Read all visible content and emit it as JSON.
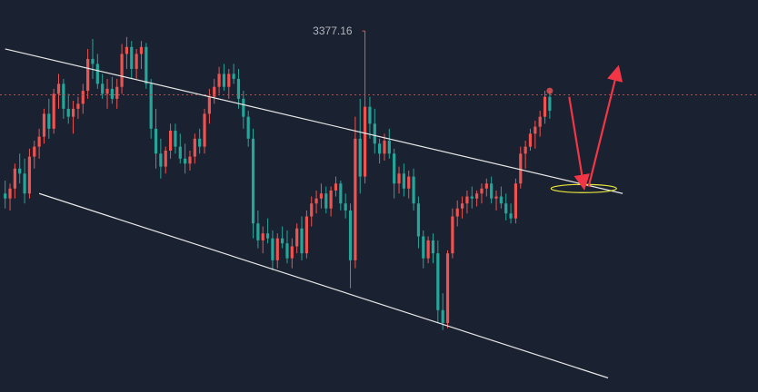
{
  "colors": {
    "background": "#1a2130",
    "up_candle": "#ef5350",
    "down_candle": "#26a69a",
    "channel_line": "#e6e6e6",
    "dotted_line": "#b45050",
    "arrow": "#f23645",
    "ellipse": "#e8e53c"
  },
  "chart_data": {
    "type": "candlestick",
    "title": "",
    "high_annotation": "3377.16",
    "price_range": [
      3025,
      3400
    ],
    "dotted_price_level": 3314,
    "series": [
      {
        "name": "",
        "ohlc": [
          [
            3215,
            3228,
            3200,
            3210
          ],
          [
            3210,
            3225,
            3198,
            3220
          ],
          [
            3220,
            3245,
            3210,
            3240
          ],
          [
            3240,
            3255,
            3225,
            3235
          ],
          [
            3235,
            3250,
            3205,
            3215
          ],
          [
            3215,
            3260,
            3210,
            3252
          ],
          [
            3252,
            3268,
            3240,
            3262
          ],
          [
            3262,
            3280,
            3250,
            3272
          ],
          [
            3272,
            3300,
            3265,
            3295
          ],
          [
            3295,
            3310,
            3270,
            3280
          ],
          [
            3280,
            3320,
            3275,
            3315
          ],
          [
            3315,
            3335,
            3300,
            3325
          ],
          [
            3325,
            3330,
            3290,
            3300
          ],
          [
            3300,
            3315,
            3285,
            3292
          ],
          [
            3292,
            3308,
            3275,
            3300
          ],
          [
            3300,
            3312,
            3290,
            3305
          ],
          [
            3305,
            3325,
            3295,
            3318
          ],
          [
            3318,
            3360,
            3310,
            3350
          ],
          [
            3350,
            3370,
            3330,
            3345
          ],
          [
            3345,
            3355,
            3320,
            3325
          ],
          [
            3325,
            3335,
            3310,
            3315
          ],
          [
            3315,
            3330,
            3300,
            3320
          ],
          [
            3320,
            3332,
            3305,
            3310
          ],
          [
            3310,
            3330,
            3300,
            3322
          ],
          [
            3322,
            3365,
            3315,
            3355
          ],
          [
            3355,
            3372,
            3340,
            3362
          ],
          [
            3362,
            3368,
            3330,
            3340
          ],
          [
            3340,
            3360,
            3330,
            3355
          ],
          [
            3355,
            3368,
            3340,
            3362
          ],
          [
            3362,
            3366,
            3320,
            3325
          ],
          [
            3325,
            3330,
            3270,
            3280
          ],
          [
            3280,
            3300,
            3240,
            3255
          ],
          [
            3255,
            3270,
            3230,
            3242
          ],
          [
            3242,
            3262,
            3235,
            3258
          ],
          [
            3258,
            3285,
            3250,
            3278
          ],
          [
            3278,
            3285,
            3255,
            3262
          ],
          [
            3262,
            3275,
            3245,
            3250
          ],
          [
            3250,
            3265,
            3235,
            3245
          ],
          [
            3245,
            3258,
            3238,
            3252
          ],
          [
            3252,
            3275,
            3245,
            3270
          ],
          [
            3270,
            3280,
            3255,
            3262
          ],
          [
            3262,
            3300,
            3255,
            3295
          ],
          [
            3295,
            3320,
            3285,
            3312
          ],
          [
            3312,
            3330,
            3305,
            3322
          ],
          [
            3322,
            3342,
            3315,
            3335
          ],
          [
            3335,
            3345,
            3318,
            3322
          ],
          [
            3322,
            3340,
            3310,
            3335
          ],
          [
            3335,
            3345,
            3325,
            3330
          ],
          [
            3330,
            3340,
            3300,
            3310
          ],
          [
            3310,
            3318,
            3280,
            3292
          ],
          [
            3292,
            3298,
            3262,
            3270
          ],
          [
            3270,
            3280,
            3170,
            3185
          ],
          [
            3185,
            3198,
            3160,
            3168
          ],
          [
            3168,
            3182,
            3155,
            3175
          ],
          [
            3175,
            3190,
            3165,
            3170
          ],
          [
            3170,
            3178,
            3138,
            3148
          ],
          [
            3148,
            3175,
            3140,
            3170
          ],
          [
            3170,
            3182,
            3160,
            3165
          ],
          [
            3165,
            3178,
            3145,
            3150
          ],
          [
            3150,
            3170,
            3140,
            3162
          ],
          [
            3162,
            3185,
            3155,
            3180
          ],
          [
            3180,
            3192,
            3148,
            3155
          ],
          [
            3155,
            3198,
            3150,
            3192
          ],
          [
            3192,
            3212,
            3182,
            3205
          ],
          [
            3205,
            3218,
            3195,
            3210
          ],
          [
            3210,
            3225,
            3200,
            3215
          ],
          [
            3215,
            3222,
            3195,
            3200
          ],
          [
            3200,
            3222,
            3192,
            3218
          ],
          [
            3218,
            3232,
            3212,
            3225
          ],
          [
            3225,
            3228,
            3198,
            3205
          ],
          [
            3205,
            3215,
            3190,
            3198
          ],
          [
            3198,
            3205,
            3120,
            3148
          ],
          [
            3148,
            3292,
            3140,
            3270
          ],
          [
            3270,
            3310,
            3215,
            3232
          ],
          [
            3232,
            3378,
            3225,
            3302
          ],
          [
            3302,
            3312,
            3270,
            3285
          ],
          [
            3285,
            3300,
            3255,
            3265
          ],
          [
            3265,
            3270,
            3245,
            3255
          ],
          [
            3255,
            3275,
            3248,
            3268
          ],
          [
            3268,
            3280,
            3250,
            3255
          ],
          [
            3255,
            3260,
            3210,
            3225
          ],
          [
            3225,
            3242,
            3215,
            3235
          ],
          [
            3235,
            3245,
            3212,
            3220
          ],
          [
            3220,
            3238,
            3210,
            3232
          ],
          [
            3232,
            3240,
            3198,
            3205
          ],
          [
            3205,
            3212,
            3160,
            3172
          ],
          [
            3172,
            3178,
            3140,
            3150
          ],
          [
            3150,
            3172,
            3145,
            3168
          ],
          [
            3168,
            3175,
            3145,
            3155
          ],
          [
            3155,
            3168,
            3085,
            3098
          ],
          [
            3098,
            3115,
            3078,
            3085
          ],
          [
            3085,
            3158,
            3080,
            3155
          ],
          [
            3155,
            3200,
            3150,
            3192
          ],
          [
            3192,
            3208,
            3182,
            3200
          ],
          [
            3200,
            3212,
            3190,
            3205
          ],
          [
            3205,
            3218,
            3195,
            3212
          ],
          [
            3212,
            3222,
            3200,
            3210
          ],
          [
            3210,
            3218,
            3202,
            3215
          ],
          [
            3215,
            3225,
            3205,
            3220
          ],
          [
            3220,
            3230,
            3212,
            3225
          ],
          [
            3225,
            3232,
            3205,
            3210
          ],
          [
            3210,
            3218,
            3198,
            3212
          ],
          [
            3212,
            3222,
            3200,
            3205
          ],
          [
            3205,
            3215,
            3188,
            3195
          ],
          [
            3195,
            3205,
            3185,
            3190
          ],
          [
            3190,
            3230,
            3185,
            3225
          ],
          [
            3225,
            3262,
            3220,
            3255
          ],
          [
            3255,
            3268,
            3240,
            3262
          ],
          [
            3262,
            3280,
            3258,
            3275
          ],
          [
            3275,
            3288,
            3260,
            3282
          ],
          [
            3282,
            3298,
            3272,
            3292
          ],
          [
            3292,
            3318,
            3285,
            3312
          ],
          [
            3312,
            3318,
            3290,
            3298
          ]
        ]
      }
    ],
    "trendlines": [
      {
        "name": "channel-upper",
        "points": [
          [
            0,
            3360
          ],
          [
            127,
            3215
          ]
        ]
      },
      {
        "name": "channel-lower",
        "points": [
          [
            7,
            3215
          ],
          [
            124,
            3030
          ]
        ]
      }
    ],
    "annotations": [
      {
        "type": "ellipse",
        "index": 119,
        "price": 3220
      },
      {
        "type": "arrow",
        "from": [
          116,
          3312
        ],
        "to": [
          119,
          3222
        ]
      },
      {
        "type": "arrow",
        "from": [
          120,
          3222
        ],
        "to": [
          126,
          3340
        ]
      }
    ]
  }
}
